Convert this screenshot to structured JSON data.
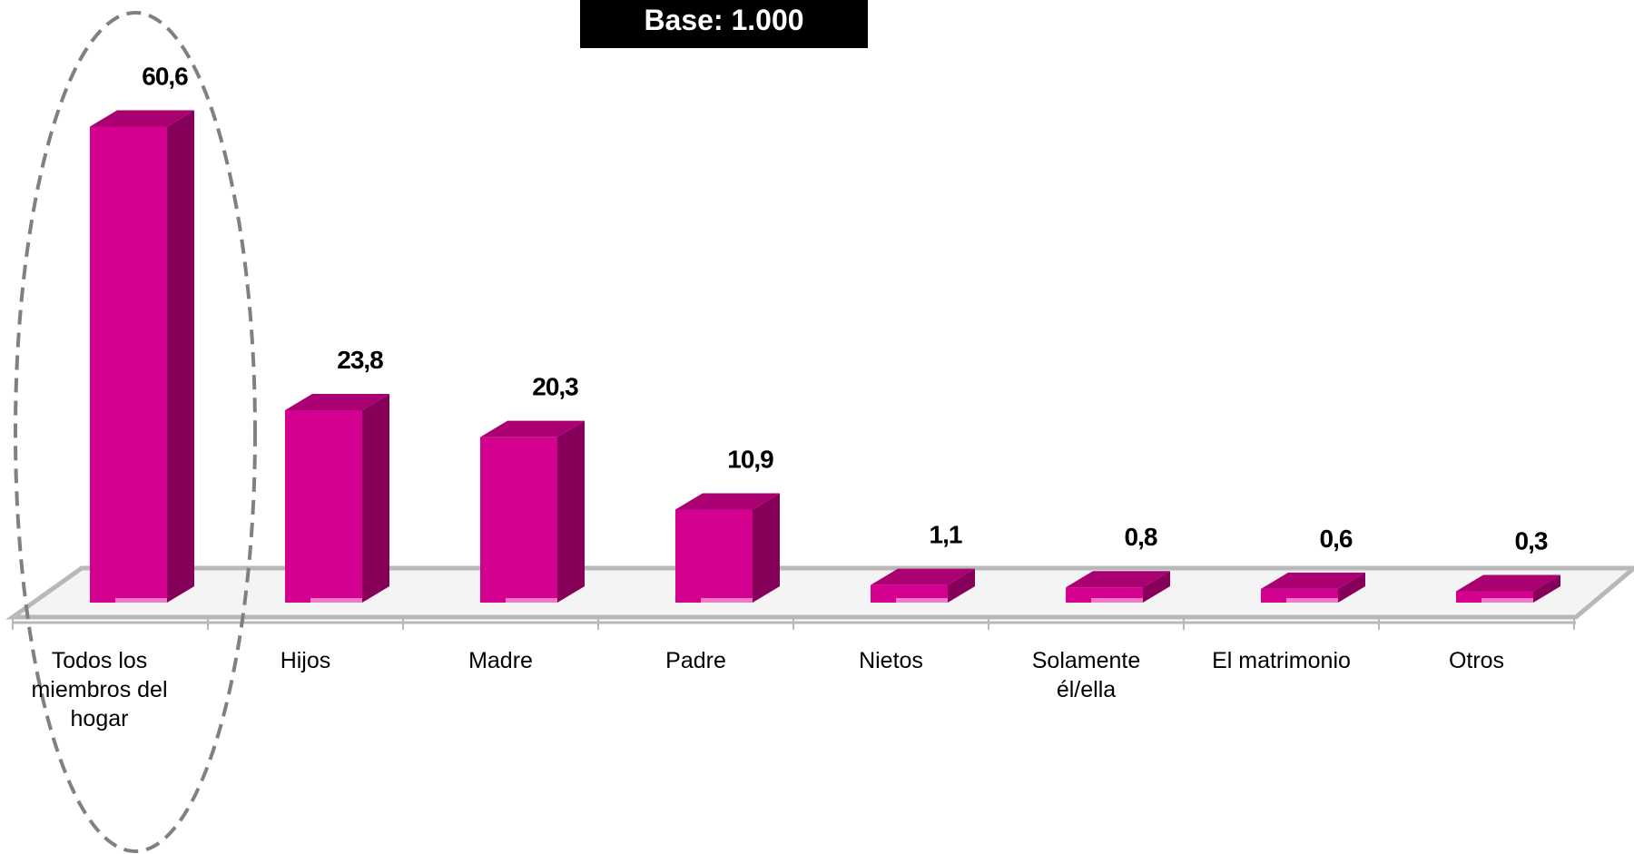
{
  "chart_data": {
    "type": "bar3d",
    "title": "Base: 1.000",
    "categories": [
      "Todos los miembros del hogar",
      "Hijos",
      "Madre",
      "Padre",
      "Nietos",
      "Solamente él/ella",
      "El matrimonio",
      "Otros"
    ],
    "values": [
      60.6,
      23.8,
      20.3,
      10.9,
      1.1,
      0.8,
      0.6,
      0.3
    ],
    "value_labels": [
      "60,6",
      "23,8",
      "20,3",
      "10,9",
      "1,1",
      "0,8",
      "0,6",
      "0,3"
    ],
    "color": "#d4008f"
  }
}
